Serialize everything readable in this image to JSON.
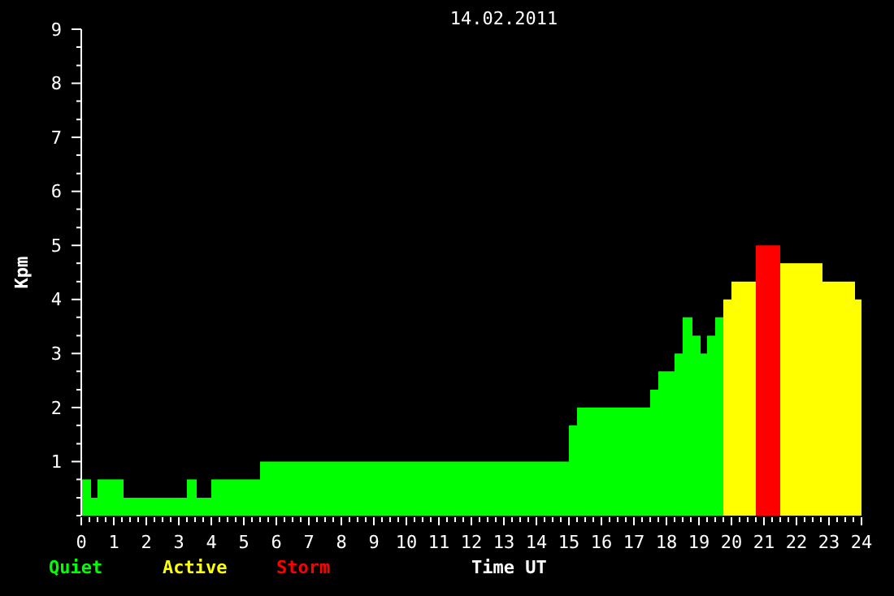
{
  "chart_data": {
    "type": "histogram",
    "title": "14.02.2011",
    "xlabel": "Time UT",
    "ylabel": "Kpm",
    "bins": [
      0,
      0.3,
      0.5,
      1.3,
      3.25,
      3.55,
      4,
      5.5,
      15,
      15.25,
      17.5,
      17.75,
      18.25,
      18.5,
      18.8,
      19.05,
      19.25,
      19.5,
      19.75,
      20,
      20.75,
      21.5,
      22.8,
      23.8,
      24
    ],
    "series": [
      {
        "name": "Quiet",
        "color": "#00ff00",
        "values": [
          0.67,
          0.33,
          0.67,
          0.33,
          0.67,
          0.33,
          0.67,
          1,
          1.67,
          2,
          2.33,
          2.67,
          3,
          3.67,
          3.33,
          3,
          3.33,
          3.67,
          null,
          null,
          null,
          null,
          null,
          null
        ]
      },
      {
        "name": "Active",
        "color": "#ffff00",
        "values": [
          null,
          null,
          null,
          null,
          null,
          null,
          null,
          null,
          null,
          null,
          null,
          null,
          null,
          null,
          null,
          null,
          null,
          null,
          4,
          4.33,
          null,
          4.67,
          4.33,
          4
        ]
      },
      {
        "name": "Storm",
        "color": "#ff0000",
        "values": [
          null,
          null,
          null,
          null,
          null,
          null,
          null,
          null,
          null,
          null,
          null,
          null,
          null,
          null,
          null,
          null,
          null,
          null,
          null,
          null,
          5,
          null,
          null,
          null
        ]
      }
    ],
    "xlim": [
      0,
      24
    ],
    "ylim": [
      0,
      9
    ],
    "xticks": [
      0,
      1,
      2,
      3,
      4,
      5,
      6,
      7,
      8,
      9,
      10,
      11,
      12,
      13,
      14,
      15,
      16,
      17,
      18,
      19,
      20,
      21,
      22,
      23,
      24
    ],
    "yticks": [
      {
        "value": 0,
        "label": null
      },
      {
        "value": 0.33,
        "label": null
      },
      {
        "value": 0.67,
        "label": null
      },
      1,
      {
        "value": 1.33,
        "label": null
      },
      {
        "value": 1.67,
        "label": null
      },
      2,
      {
        "value": 2.33,
        "label": null
      },
      {
        "value": 2.67,
        "label": null
      },
      3,
      {
        "value": 3.33,
        "label": null
      },
      {
        "value": 3.67,
        "label": null
      },
      4,
      {
        "value": 4.33,
        "label": null
      },
      {
        "value": 4.67,
        "label": null
      },
      5,
      {
        "value": 5.33,
        "label": null
      },
      {
        "value": 5.67,
        "label": null
      },
      6,
      {
        "value": 6.33,
        "label": null
      },
      {
        "value": 6.67,
        "label": null
      },
      7,
      {
        "value": 7.33,
        "label": null
      },
      {
        "value": 7.67,
        "label": null
      },
      8,
      {
        "value": 8.33,
        "label": null
      },
      {
        "value": 8.67,
        "label": null
      },
      9
    ],
    "legend": "bottom left"
  }
}
